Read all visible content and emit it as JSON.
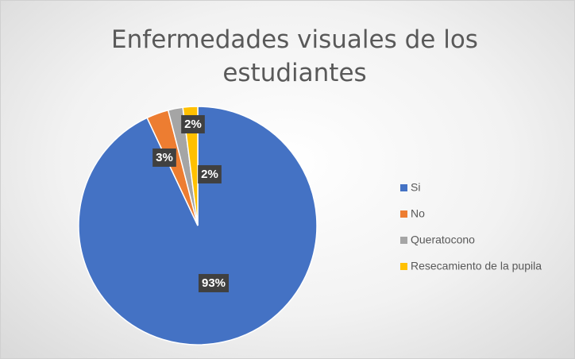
{
  "chart_data": {
    "type": "pie",
    "title": "Enfermedades visuales de los estudiantes",
    "categories": [
      "Si",
      "No",
      "Queratocono",
      "Resecamiento de la pupila"
    ],
    "values": [
      93,
      3,
      2,
      2
    ],
    "value_labels": [
      "93%",
      "3%",
      "2%",
      "2%"
    ],
    "colors": [
      "#4472c4",
      "#ed7d31",
      "#a5a5a5",
      "#ffc000"
    ],
    "legend": "right"
  }
}
